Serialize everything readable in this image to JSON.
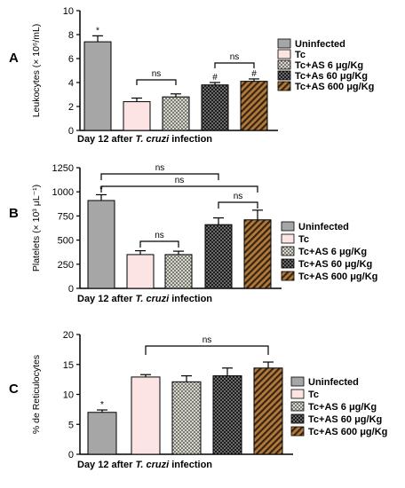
{
  "colors": {
    "uninfected": "#a6a6a6",
    "tc": "#fde4e4",
    "as6": "#c8c8c0",
    "as60": "#3a3a3a",
    "as600": "#8a5a2b"
  },
  "legend": [
    {
      "label": "Uninfected",
      "color_key": "uninfected",
      "pattern": "solid"
    },
    {
      "label": "Tc",
      "color_key": "tc",
      "pattern": "solid"
    },
    {
      "label": "Tc+AS 6   μg/Kg",
      "color_key": "as6",
      "pattern": "check"
    },
    {
      "label": "Tc+As 60  μg/Kg",
      "color_key": "as60",
      "pattern": "check"
    },
    {
      "label": "Tc+AS 600 μg/Kg",
      "color_key": "as600",
      "pattern": "diag"
    }
  ],
  "legend_b": [
    {
      "label": "Uninfected"
    },
    {
      "label": "Tc"
    },
    {
      "label": "Tc+AS 6     μg/Kg"
    },
    {
      "label": "Tc+AS 60   μg/Kg"
    },
    {
      "label": "Tc+AS 600 μg/Kg"
    }
  ],
  "legend_c": [
    {
      "label": "Uninfected"
    },
    {
      "label": "Tc"
    },
    {
      "label": "Tc+AS 6  μg/Kg"
    },
    {
      "label": "Tc+AS 60  μg/Kg"
    },
    {
      "label": "Tc+AS 600 μg/Kg"
    }
  ],
  "xlabel_prefix": "Day 12 after ",
  "xlabel_italic": "T. cruzi",
  "xlabel_suffix": " infection",
  "chart_data": [
    {
      "panel": "A",
      "type": "bar",
      "ylabel": "Leukocytes (× 10⁶/mL)",
      "ylim": [
        0,
        10
      ],
      "yticks": [
        0,
        2,
        4,
        6,
        8,
        10
      ],
      "categories": [
        "Uninfected",
        "Tc",
        "Tc+AS 6 μg/Kg",
        "Tc+As 60 μg/Kg",
        "Tc+AS 600 μg/Kg"
      ],
      "values": [
        7.4,
        2.4,
        2.8,
        3.8,
        4.1
      ],
      "errors": [
        0.5,
        0.3,
        0.25,
        0.2,
        0.2
      ],
      "annotations": [
        "*",
        "",
        "",
        "#",
        "#"
      ],
      "ns_brackets": [
        [
          1,
          2
        ],
        [
          3,
          4
        ]
      ]
    },
    {
      "panel": "B",
      "type": "bar",
      "ylabel": "Platelets (× 10³ μL⁻¹)",
      "ylim": [
        0,
        1250
      ],
      "yticks": [
        0,
        250,
        500,
        750,
        1000,
        1250
      ],
      "categories": [
        "Uninfected",
        "Tc",
        "Tc+AS 6 μg/Kg",
        "Tc+AS 60 μg/Kg",
        "Tc+AS 600 μg/Kg"
      ],
      "values": [
        910,
        350,
        350,
        660,
        710
      ],
      "errors": [
        60,
        40,
        35,
        70,
        100
      ],
      "annotations": [
        "*",
        "",
        "",
        "",
        ""
      ],
      "ns_brackets": [
        [
          1,
          2
        ],
        [
          3,
          4
        ],
        [
          0,
          3
        ],
        [
          0,
          4
        ]
      ]
    },
    {
      "panel": "C",
      "type": "bar",
      "ylabel": "% de Reticulocytes",
      "ylim": [
        0,
        20
      ],
      "yticks": [
        0,
        5,
        10,
        15,
        20
      ],
      "categories": [
        "Uninfected",
        "Tc",
        "Tc+AS 6 μg/Kg",
        "Tc+AS 60 μg/Kg",
        "Tc+AS 600 μg/Kg"
      ],
      "values": [
        7.0,
        12.9,
        12.1,
        13.1,
        14.4
      ],
      "errors": [
        0.4,
        0.4,
        1.0,
        1.3,
        1.0
      ],
      "annotations": [
        "*",
        "",
        "",
        "",
        ""
      ],
      "ns_brackets": [
        [
          1,
          4
        ]
      ]
    }
  ],
  "ns_label": "ns"
}
